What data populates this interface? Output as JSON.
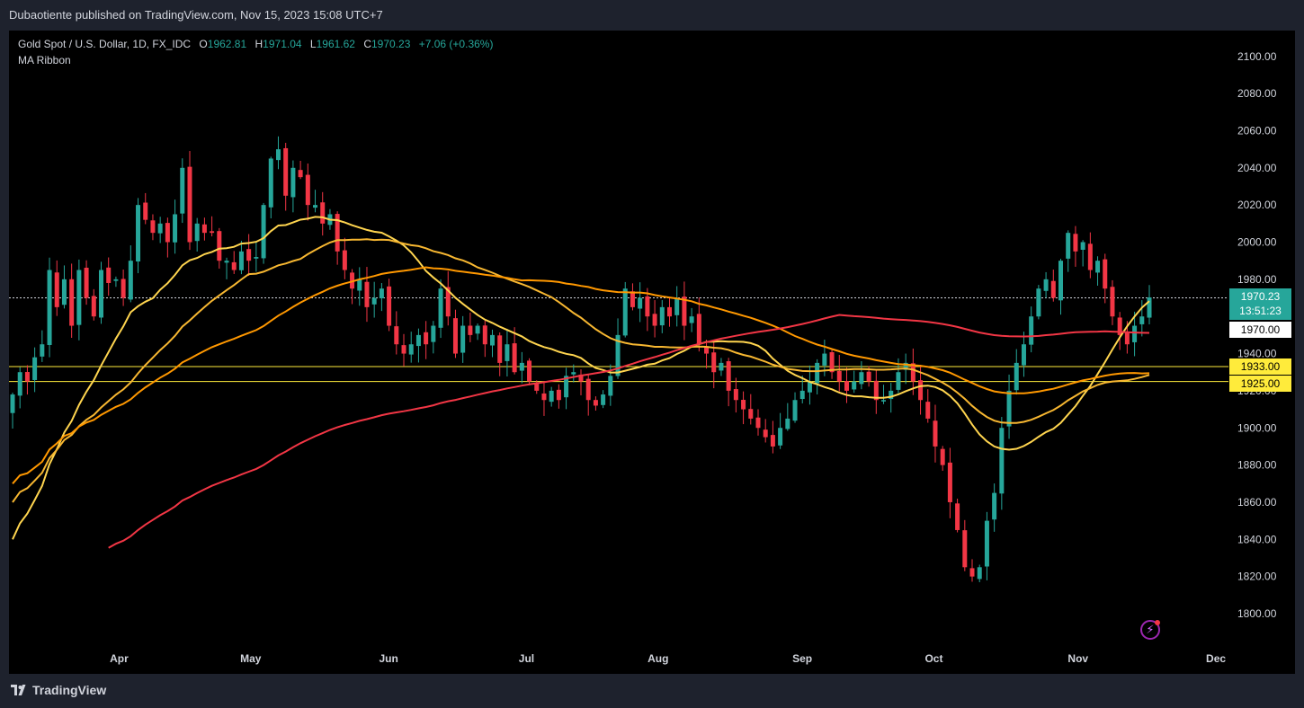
{
  "header": {
    "publisher_line": "Dubaotiente published on TradingView.com, Nov 15, 2023 15:08 UTC+7"
  },
  "legend": {
    "symbol": "Gold Spot / U.S. Dollar, 1D, FX_IDC",
    "o_label": "O",
    "o_value": "1962.81",
    "h_label": "H",
    "h_value": "1971.04",
    "l_label": "L",
    "l_value": "1961.62",
    "c_label": "C",
    "c_value": "1970.23",
    "change": "+7.06 (+0.36%)",
    "indicator": "MA Ribbon"
  },
  "badges": {
    "last_price": "1970.23",
    "countdown": "13:51:23",
    "level_1970": "1970.00",
    "level_1933": "1933.00",
    "level_1925": "1925.00"
  },
  "footer": {
    "brand": "TradingView"
  },
  "colors": {
    "up": "#26a69a",
    "down": "#f23645",
    "ma1": "#ffd54f",
    "ma2": "#f7b731",
    "ma3": "#ff9800",
    "ma4": "#f23645",
    "hline": "#ffeb3b"
  },
  "chart_data": {
    "type": "candlestick",
    "title": "Gold Spot / U.S. Dollar, 1D, FX_IDC",
    "ylim": [
      1785,
      2110
    ],
    "y_ticks": [
      1800,
      1820,
      1840,
      1860,
      1880,
      1900,
      1920,
      1940,
      1960,
      1980,
      2000,
      2020,
      2040,
      2060,
      2080,
      2100
    ],
    "x_ticks": [
      {
        "label": "Apr",
        "index": 17
      },
      {
        "label": "May",
        "index": 38
      },
      {
        "label": "Jun",
        "index": 60
      },
      {
        "label": "Jul",
        "index": 82
      },
      {
        "label": "Aug",
        "index": 103
      },
      {
        "label": "Sep",
        "index": 126
      },
      {
        "label": "Oct",
        "index": 147
      },
      {
        "label": "Nov",
        "index": 170
      },
      {
        "label": "Dec",
        "index": 192
      }
    ],
    "total_slots": 195,
    "horizontal_lines": [
      1970,
      1933,
      1925
    ],
    "closes": [
      1918,
      1930,
      1925,
      1938,
      1945,
      1985,
      1965,
      1980,
      1955,
      1985,
      1970,
      1960,
      1985,
      1978,
      1980,
      1970,
      1990,
      2020,
      2012,
      2005,
      2010,
      2000,
      2015,
      2040,
      2000,
      2010,
      2005,
      2005,
      1990,
      1990,
      1985,
      1995,
      1990,
      1992,
      2020,
      2045,
      2050,
      2025,
      2040,
      2035,
      2020,
      2020,
      2010,
      2015,
      1995,
      1985,
      1975,
      1980,
      1965,
      1970,
      1975,
      1955,
      1945,
      1940,
      1945,
      1950,
      1945,
      1955,
      1975,
      1960,
      1940,
      1955,
      1950,
      1955,
      1945,
      1950,
      1935,
      1945,
      1930,
      1935,
      1925,
      1920,
      1915,
      1920,
      1915,
      1928,
      1930,
      1925,
      1915,
      1912,
      1918,
      1928,
      1950,
      1975,
      1965,
      1970,
      1960,
      1955,
      1965,
      1960,
      1970,
      1955,
      1960,
      1945,
      1940,
      1930,
      1935,
      1920,
      1915,
      1910,
      1905,
      1900,
      1895,
      1890,
      1900,
      1905,
      1915,
      1920,
      1925,
      1935,
      1940,
      1930,
      1925,
      1920,
      1925,
      1930,
      1925,
      1915,
      1915,
      1920,
      1930,
      1935,
      1925,
      1915,
      1905,
      1890,
      1880,
      1860,
      1845,
      1825,
      1820,
      1825,
      1850,
      1865,
      1900,
      1920,
      1935,
      1945,
      1960,
      1975,
      1980,
      1970,
      1990,
      2005,
      1995,
      2000,
      1985,
      1990,
      1975,
      1960,
      1950,
      1945,
      1955,
      1960,
      1970.23
    ],
    "series": [
      {
        "name": "",
        "values": [
          1840,
          1965
        ]
      },
      {
        "name": "",
        "values": [
          1860,
          1935
        ]
      },
      {
        "name": "",
        "values": [
          1870,
          1928
        ]
      },
      {
        "name": "",
        "values": [
          1795,
          1937
        ]
      }
    ]
  }
}
